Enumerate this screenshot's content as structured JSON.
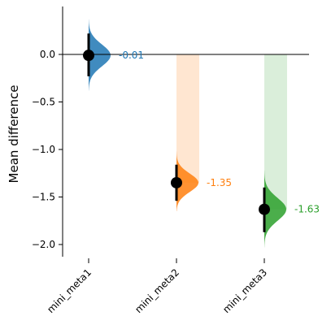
{
  "chart_data": {
    "type": "estimation-plot",
    "title": "",
    "xlabel": "",
    "ylabel": "Mean difference",
    "ylim": [
      -2.12,
      0.5
    ],
    "yticks": [
      0.0,
      -0.5,
      -1.0,
      -1.5,
      -2.0
    ],
    "ytick_labels": [
      "0.0",
      "−0.5",
      "−1.0",
      "−1.5",
      "−2.0"
    ],
    "grid": false,
    "reference_line": 0.0,
    "categories": [
      "mini_meta1",
      "mini_meta2",
      "mini_meta3"
    ],
    "series": [
      {
        "category": "mini_meta1",
        "mean": -0.01,
        "ci": [
          -0.23,
          0.22
        ],
        "dist_range": [
          -0.38,
          0.37
        ],
        "label": "-0.01",
        "color": "#1f77b4",
        "band_color": "#1f77b4"
      },
      {
        "category": "mini_meta2",
        "mean": -1.35,
        "ci": [
          -1.54,
          -1.16
        ],
        "dist_range": [
          -1.65,
          -1.02
        ],
        "label": "-1.35",
        "color": "#ff7f0e",
        "band_color": "#ffe3cc"
      },
      {
        "category": "mini_meta3",
        "mean": -1.63,
        "ci": [
          -1.87,
          -1.4
        ],
        "dist_range": [
          -2.03,
          -1.22
        ],
        "label": "-1.63",
        "color": "#2ca02c",
        "band_color": "#d6ecd6"
      }
    ]
  }
}
